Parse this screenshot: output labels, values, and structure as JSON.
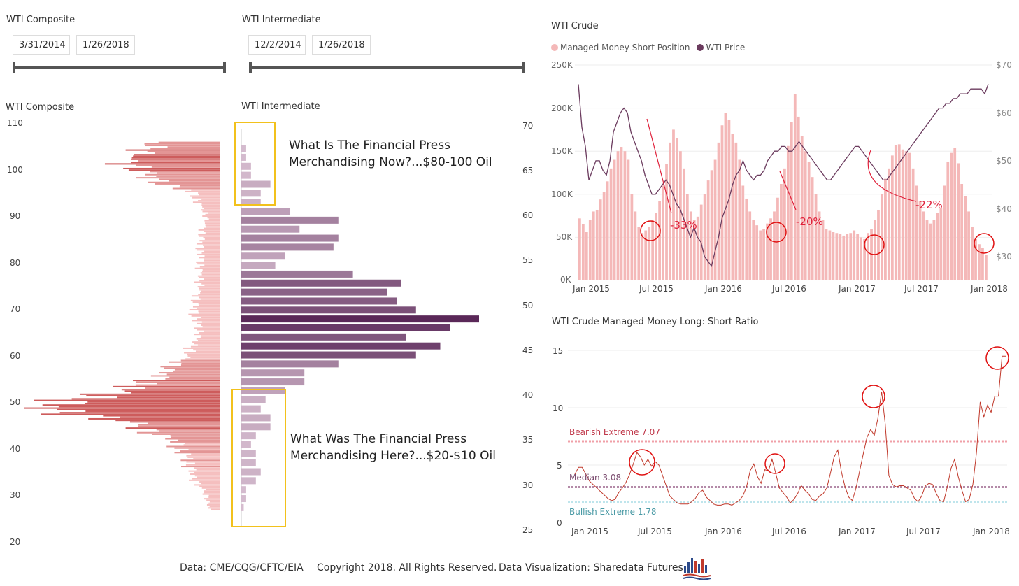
{
  "slicers": [
    {
      "title": "WTI Composite",
      "start": "3/31/2014",
      "end": "1/26/2018"
    },
    {
      "title": "WTI Intermediate",
      "start": "12/2/2014",
      "end": "1/26/2018"
    }
  ],
  "composite_chart": {
    "title": "WTI Composite",
    "y_ticks": [
      "110",
      "100",
      "90",
      "80",
      "70",
      "60",
      "50",
      "40",
      "30",
      "20"
    ]
  },
  "intermediate_chart": {
    "title": "WTI Intermediate",
    "y_ticks": [
      "70",
      "65",
      "60",
      "55",
      "50",
      "45",
      "40",
      "35",
      "30",
      "25"
    ]
  },
  "annotations": {
    "top_line1": "What Is The Financial Press",
    "top_line2": "Merchandising Now?...$80-100 Oil",
    "bottom_line1": "What Was The Financial Press",
    "bottom_line2": "Merchandising Here?...$20-$10 Oil"
  },
  "crude_chart": {
    "title": "WTI Crude",
    "legend": [
      "Managed Money Short Position",
      "WTI Price"
    ],
    "left_ticks": [
      "250K",
      "200K",
      "150K",
      "100K",
      "50K",
      "0K"
    ],
    "right_ticks": [
      "$70",
      "$60",
      "$50",
      "$40",
      "$30"
    ],
    "x_ticks": [
      "Jan 2015",
      "Jul 2015",
      "Jan 2016",
      "Jul 2016",
      "Jan 2017",
      "Jul 2017",
      "Jan 2018"
    ],
    "callouts": [
      "-33%",
      "-20%",
      "-22%"
    ]
  },
  "ratio_chart": {
    "title": "WTI Crude Managed Money Long: Short Ratio",
    "y_ticks": [
      "15",
      "10",
      "5",
      "0"
    ],
    "x_ticks": [
      "Jan 2015",
      "Jul 2015",
      "Jan 2016",
      "Jul 2016",
      "Jan 2017",
      "Jul 2017",
      "Jan 2018"
    ],
    "lines": [
      "Bearish Extreme 7.07",
      "Median 3.08",
      "Bullish Extreme 1.78"
    ]
  },
  "colors": {
    "bar_pink": "#f4b8b8",
    "bar_red": "#c84a4a",
    "purple": "#6b3b5e",
    "line_red": "#c0392b",
    "circle": "#e01010"
  },
  "chart_data": [
    {
      "type": "bar",
      "title": "WTI Composite",
      "orientation": "horizontal",
      "ylim": [
        20,
        110
      ],
      "bins": [
        {
          "price": 105,
          "volume": 10
        },
        {
          "price": 102,
          "volume": 14
        },
        {
          "price": 98,
          "volume": 10
        },
        {
          "price": 95,
          "volume": 4
        },
        {
          "price": 90,
          "volume": 2
        },
        {
          "price": 85,
          "volume": 3
        },
        {
          "price": 80,
          "volume": 3
        },
        {
          "price": 75,
          "volume": 3
        },
        {
          "price": 70,
          "volume": 4
        },
        {
          "price": 65,
          "volume": 3
        },
        {
          "price": 60,
          "volume": 5
        },
        {
          "price": 55,
          "volume": 10
        },
        {
          "price": 52,
          "volume": 17
        },
        {
          "price": 49,
          "volume": 27
        },
        {
          "price": 46,
          "volume": 14
        },
        {
          "price": 42,
          "volume": 7
        },
        {
          "price": 38,
          "volume": 5
        },
        {
          "price": 34,
          "volume": 4
        },
        {
          "price": 30,
          "volume": 2
        }
      ]
    },
    {
      "type": "bar",
      "title": "WTI Intermediate",
      "orientation": "horizontal",
      "ylim": [
        25,
        70
      ],
      "bins": [
        {
          "price": 67.5,
          "volume": 1
        },
        {
          "price": 66.5,
          "volume": 1
        },
        {
          "price": 65.5,
          "volume": 2
        },
        {
          "price": 64.5,
          "volume": 2
        },
        {
          "price": 63.5,
          "volume": 6
        },
        {
          "price": 62.5,
          "volume": 4
        },
        {
          "price": 61.5,
          "volume": 4
        },
        {
          "price": 60.5,
          "volume": 10
        },
        {
          "price": 59.5,
          "volume": 20
        },
        {
          "price": 58.5,
          "volume": 12
        },
        {
          "price": 57.5,
          "volume": 20
        },
        {
          "price": 56.5,
          "volume": 19
        },
        {
          "price": 55.5,
          "volume": 9
        },
        {
          "price": 54.5,
          "volume": 7
        },
        {
          "price": 53.5,
          "volume": 23
        },
        {
          "price": 52.5,
          "volume": 33
        },
        {
          "price": 51.5,
          "volume": 30
        },
        {
          "price": 50.5,
          "volume": 32
        },
        {
          "price": 49.5,
          "volume": 36
        },
        {
          "price": 48.5,
          "volume": 49
        },
        {
          "price": 47.5,
          "volume": 43
        },
        {
          "price": 46.5,
          "volume": 34
        },
        {
          "price": 45.5,
          "volume": 41
        },
        {
          "price": 44.5,
          "volume": 36
        },
        {
          "price": 43.5,
          "volume": 20
        },
        {
          "price": 42.5,
          "volume": 13
        },
        {
          "price": 41.5,
          "volume": 13
        },
        {
          "price": 40.5,
          "volume": 9
        },
        {
          "price": 39.5,
          "volume": 5
        },
        {
          "price": 38.5,
          "volume": 4
        },
        {
          "price": 37.5,
          "volume": 6
        },
        {
          "price": 36.5,
          "volume": 6
        },
        {
          "price": 35.5,
          "volume": 3
        },
        {
          "price": 34.5,
          "volume": 2
        },
        {
          "price": 33.5,
          "volume": 3
        },
        {
          "price": 32.5,
          "volume": 3
        },
        {
          "price": 31.5,
          "volume": 4
        },
        {
          "price": 30.5,
          "volume": 3
        },
        {
          "price": 29.5,
          "volume": 1
        },
        {
          "price": 28.5,
          "volume": 1
        },
        {
          "price": 27.5,
          "volume": 0.5
        }
      ]
    },
    {
      "type": "bar",
      "title": "WTI Crude",
      "x_range": [
        "Jan 2015",
        "Jan 2018"
      ],
      "short_position_k": [
        72,
        65,
        56,
        70,
        80,
        82,
        94,
        103,
        115,
        130,
        140,
        150,
        155,
        150,
        140,
        100,
        80,
        62,
        55,
        58,
        62,
        70,
        78,
        92,
        112,
        135,
        160,
        175,
        165,
        150,
        130,
        100,
        80,
        70,
        74,
        88,
        100,
        116,
        128,
        140,
        160,
        180,
        194,
        186,
        170,
        160,
        140,
        110,
        95,
        80,
        70,
        64,
        58,
        60,
        66,
        72,
        80,
        96,
        112,
        130,
        156,
        184,
        216,
        190,
        168,
        150,
        138,
        120,
        100,
        80,
        70,
        60,
        58,
        56,
        55,
        54,
        52,
        54,
        55,
        58,
        54,
        50,
        48,
        55,
        60,
        70,
        82,
        100,
        118,
        130,
        145,
        157,
        158,
        152,
        150,
        148,
        130,
        110,
        92,
        80,
        70,
        66,
        70,
        78,
        84,
        110,
        138,
        148,
        154,
        136,
        112,
        98,
        80,
        62,
        48,
        42,
        38,
        30
      ],
      "wti_price": [
        66,
        57,
        53,
        46,
        48,
        50,
        50,
        48,
        47,
        50,
        56,
        58,
        60,
        61,
        60,
        56,
        54,
        52,
        50,
        47,
        45,
        43,
        43,
        44,
        45,
        46,
        45,
        43,
        41,
        40,
        38,
        36,
        34,
        36,
        34,
        33,
        30,
        29,
        28,
        31,
        34,
        38,
        40,
        42,
        45,
        47,
        48,
        50,
        48,
        47,
        46,
        47,
        47,
        48,
        50,
        51,
        52,
        52,
        53,
        53,
        52,
        52,
        53,
        54,
        53,
        52,
        51,
        50,
        49,
        48,
        47,
        46,
        46,
        47,
        48,
        49,
        50,
        51,
        52,
        53,
        53,
        52,
        51,
        50,
        49,
        48,
        47,
        46,
        46,
        47,
        48,
        49,
        50,
        51,
        52,
        53,
        54,
        55,
        56,
        57,
        58,
        59,
        60,
        61,
        61,
        62,
        62,
        63,
        63,
        64,
        64,
        64,
        65,
        65,
        65,
        65,
        64,
        66
      ],
      "ylim_left": [
        0,
        250000
      ],
      "ylim_right": [
        25,
        70
      ]
    },
    {
      "type": "line",
      "title": "WTI Crude Managed Money Long: Short Ratio",
      "x_range": [
        "Jan 2015",
        "Jan 2018"
      ],
      "ratio": [
        4.2,
        4.8,
        4.8,
        4.2,
        3.6,
        3.3,
        3.0,
        2.7,
        2.4,
        2.1,
        1.9,
        2.0,
        2.6,
        3.0,
        3.5,
        4.2,
        5.1,
        6.1,
        5.7,
        5.0,
        5.5,
        4.9,
        5.3,
        5.0,
        4.1,
        3.2,
        2.3,
        2.0,
        1.7,
        1.6,
        1.6,
        1.6,
        1.8,
        2.1,
        2.6,
        2.8,
        2.2,
        1.9,
        1.6,
        1.5,
        1.5,
        1.6,
        1.6,
        1.5,
        1.7,
        1.9,
        2.3,
        3.1,
        4.5,
        5.1,
        4.0,
        3.4,
        4.6,
        4.5,
        5.5,
        4.3,
        3.0,
        2.6,
        2.2,
        1.7,
        2.0,
        2.5,
        3.2,
        2.8,
        2.5,
        2.0,
        1.9,
        2.3,
        2.5,
        3.0,
        4.3,
        5.7,
        6.3,
        4.4,
        3.1,
        2.2,
        1.9,
        3.0,
        4.5,
        6.0,
        7.4,
        8.1,
        7.6,
        9.1,
        11.4,
        8.6,
        4.1,
        3.3,
        3.1,
        3.2,
        3.2,
        3.0,
        2.8,
        2.1,
        1.8,
        2.3,
        3.2,
        3.4,
        3.3,
        2.5,
        1.9,
        1.8,
        3.1,
        4.7,
        5.5,
        4.0,
        2.8,
        1.8,
        2.0,
        3.3,
        6.1,
        10.5,
        9.2,
        10.2,
        9.6,
        11.0,
        11.0,
        14.5,
        14.5
      ],
      "ylim": [
        0,
        16
      ],
      "reference_lines": {
        "bearish_extreme": 7.07,
        "median": 3.08,
        "bullish_extreme": 1.78
      }
    }
  ]
}
